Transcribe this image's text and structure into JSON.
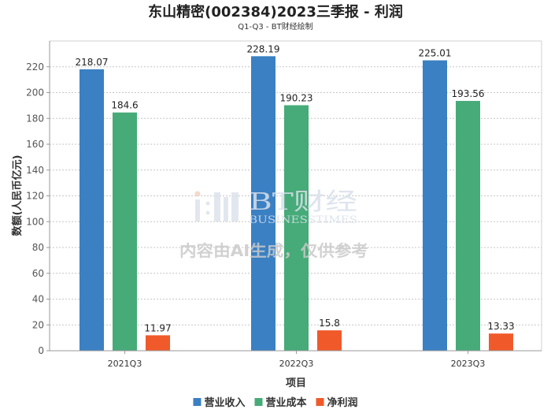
{
  "chart_data": {
    "type": "bar",
    "title": "东山精密(002384)2023三季报 - 利润",
    "subtitle": "Q1-Q3 - BT财经绘制",
    "xlabel": "项目",
    "ylabel": "数额(人民币亿元)",
    "categories": [
      "2021Q3",
      "2022Q3",
      "2023Q3"
    ],
    "series": [
      {
        "name": "营业收入",
        "color": "#3A80C3",
        "values": [
          218.07,
          228.19,
          225.01
        ]
      },
      {
        "name": "营业成本",
        "color": "#46AB78",
        "values": [
          184.6,
          190.23,
          193.56
        ]
      },
      {
        "name": "净利润",
        "color": "#F05A2A",
        "values": [
          11.97,
          15.8,
          13.33
        ]
      }
    ],
    "ylim": [
      0,
      240
    ],
    "yticks": [
      0,
      20,
      40,
      60,
      80,
      100,
      120,
      140,
      160,
      180,
      200,
      220
    ],
    "grid": true,
    "data_labels": true,
    "legend": "bottom-center"
  },
  "watermark": {
    "brand_cn": "BT财经",
    "brand_en": "BUSINESSTIMES",
    "notice": "内容由AI生成，仅供参考"
  }
}
